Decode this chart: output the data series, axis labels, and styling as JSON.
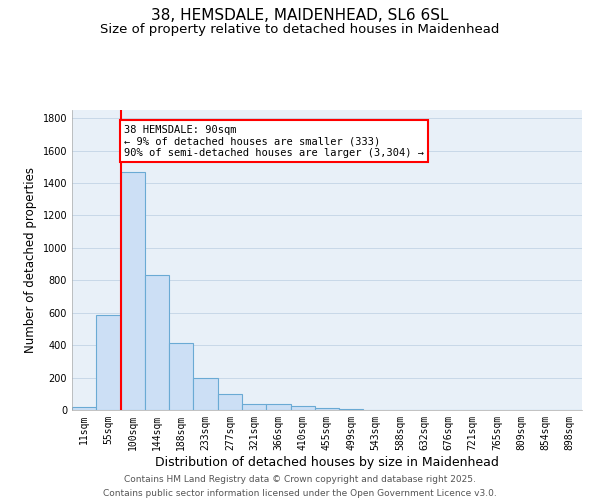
{
  "title": "38, HEMSDALE, MAIDENHEAD, SL6 6SL",
  "subtitle": "Size of property relative to detached houses in Maidenhead",
  "xlabel": "Distribution of detached houses by size in Maidenhead",
  "ylabel": "Number of detached properties",
  "categories": [
    "11sqm",
    "55sqm",
    "100sqm",
    "144sqm",
    "188sqm",
    "233sqm",
    "277sqm",
    "321sqm",
    "366sqm",
    "410sqm",
    "455sqm",
    "499sqm",
    "543sqm",
    "588sqm",
    "632sqm",
    "676sqm",
    "721sqm",
    "765sqm",
    "809sqm",
    "854sqm",
    "898sqm"
  ],
  "values": [
    20,
    585,
    1470,
    830,
    415,
    200,
    100,
    40,
    35,
    25,
    10,
    5,
    0,
    0,
    0,
    0,
    0,
    0,
    0,
    0,
    0
  ],
  "bar_color": "#ccdff5",
  "bar_edge_color": "#6aaad4",
  "annotation_text": "38 HEMSDALE: 90sqm\n← 9% of detached houses are smaller (333)\n90% of semi-detached houses are larger (3,304) →",
  "annotation_box_color": "white",
  "annotation_box_edge": "red",
  "vline_color": "red",
  "vline_x": 1.5,
  "ylim": [
    0,
    1850
  ],
  "yticks": [
    0,
    200,
    400,
    600,
    800,
    1000,
    1200,
    1400,
    1600,
    1800
  ],
  "grid_color": "#c8d8e8",
  "background_color": "#e8f0f8",
  "footer_line1": "Contains HM Land Registry data © Crown copyright and database right 2025.",
  "footer_line2": "Contains public sector information licensed under the Open Government Licence v3.0.",
  "title_fontsize": 11,
  "subtitle_fontsize": 9.5,
  "xlabel_fontsize": 9,
  "ylabel_fontsize": 8.5,
  "tick_fontsize": 7,
  "footer_fontsize": 6.5,
  "annot_fontsize": 7.5
}
